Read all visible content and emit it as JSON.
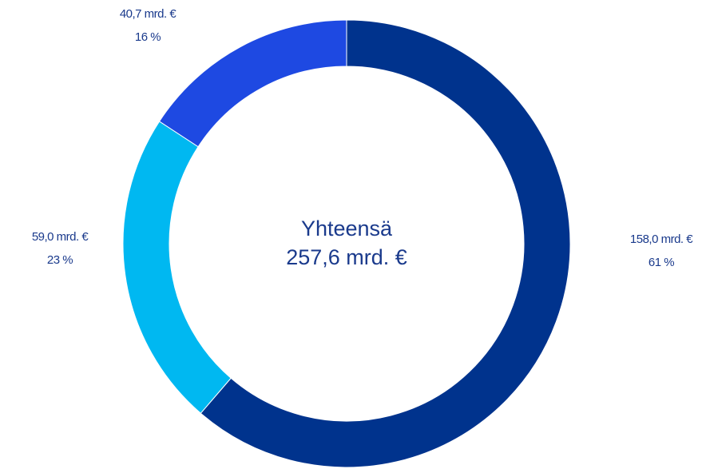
{
  "chart_data": {
    "type": "donut",
    "center_title": "Yhteensä",
    "center_total": "257,6 mrd. €",
    "values": [
      158.0,
      59.0,
      40.7
    ],
    "value_labels": [
      "158,0 mrd. €",
      "59,0 mrd. €",
      "40,7 mrd. €"
    ],
    "percent_labels": [
      "61 %",
      "23 %",
      "16 %"
    ],
    "colors": [
      "#00338d",
      "#00b8f1",
      "#1e49e2"
    ]
  }
}
